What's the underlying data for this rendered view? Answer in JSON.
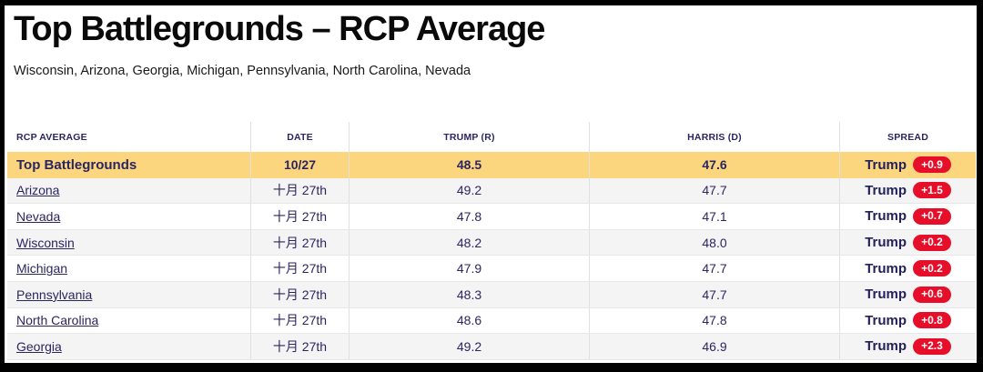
{
  "page": {
    "title": "Top Battlegrounds – RCP Average",
    "subtitle": "Wisconsin, Arizona, Georgia, Michigan, Pennsylvania, North Carolina, Nevada"
  },
  "table": {
    "columns": {
      "name": "RCP AVERAGE",
      "date": "DATE",
      "trump": "TRUMP (R)",
      "harris": "HARRIS (D)",
      "spread": "SPREAD"
    },
    "rows": [
      {
        "name": "Top Battlegrounds",
        "date": "10/27",
        "trump": "48.5",
        "harris": "47.6",
        "spread_label": "Trump",
        "spread_value": "+0.9",
        "highlight": true,
        "is_link": false
      },
      {
        "name": "Arizona",
        "date": "十月 27th",
        "trump": "49.2",
        "harris": "47.7",
        "spread_label": "Trump",
        "spread_value": "+1.5",
        "highlight": false,
        "is_link": true
      },
      {
        "name": "Nevada",
        "date": "十月 27th",
        "trump": "47.8",
        "harris": "47.1",
        "spread_label": "Trump",
        "spread_value": "+0.7",
        "highlight": false,
        "is_link": true
      },
      {
        "name": "Wisconsin",
        "date": "十月 27th",
        "trump": "48.2",
        "harris": "48.0",
        "spread_label": "Trump",
        "spread_value": "+0.2",
        "highlight": false,
        "is_link": true
      },
      {
        "name": "Michigan",
        "date": "十月 27th",
        "trump": "47.9",
        "harris": "47.7",
        "spread_label": "Trump",
        "spread_value": "+0.2",
        "highlight": false,
        "is_link": true
      },
      {
        "name": "Pennsylvania",
        "date": "十月 27th",
        "trump": "48.3",
        "harris": "47.7",
        "spread_label": "Trump",
        "spread_value": "+0.6",
        "highlight": false,
        "is_link": true
      },
      {
        "name": "North Carolina",
        "date": "十月 27th",
        "trump": "48.6",
        "harris": "47.8",
        "spread_label": "Trump",
        "spread_value": "+0.8",
        "highlight": false,
        "is_link": true
      },
      {
        "name": "Georgia",
        "date": "十月 27th",
        "trump": "49.2",
        "harris": "46.9",
        "spread_label": "Trump",
        "spread_value": "+2.3",
        "highlight": false,
        "is_link": true
      }
    ],
    "colors": {
      "highlight_row": "#fbd67e",
      "badge_red": "#e60e28",
      "text_navy": "#2b2560"
    }
  }
}
